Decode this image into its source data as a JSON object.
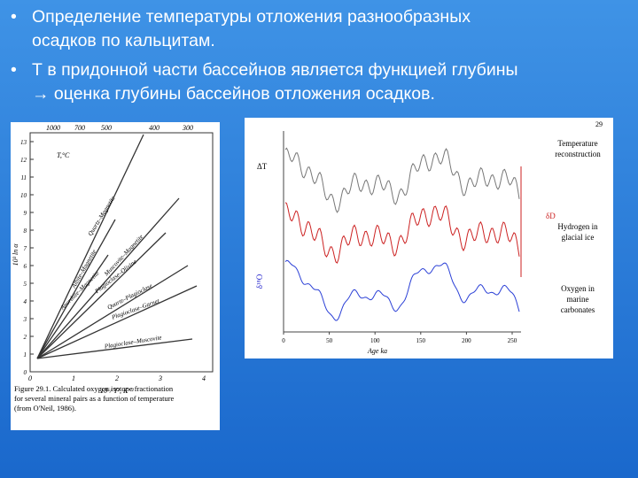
{
  "bullets": [
    {
      "lines": [
        "Определение температуры отложения разнообразных",
        "осадков по кальцитам."
      ]
    },
    {
      "lines": [
        "Т в придонной части бассейнов является функцией глубины",
        "→ оценка глубины бассейнов отложения осадков."
      ]
    }
  ],
  "figure_left": {
    "top_ticks": [
      "1000",
      "700",
      "500",
      "400",
      "300"
    ],
    "top_unit": "T,°C",
    "y_ticks": [
      "0",
      "1",
      "2",
      "3",
      "4",
      "5",
      "6",
      "7",
      "8",
      "9",
      "10",
      "11",
      "12",
      "13"
    ],
    "y_label": "10³ ln α",
    "x_ticks": [
      "0",
      "1",
      "2",
      "3",
      "4"
    ],
    "x_label": "10⁶/ T², K⁻²",
    "line_labels": [
      "Quartz–Magnetite",
      "Albite–Magnetite",
      "Muscovite–Magnetite",
      "Plagioclase–Olivine",
      "Anorthite–Magnetite",
      "Quartz–Plagioclase",
      "Plagioclase–Garnet",
      "Plagioclase–Muscovite"
    ],
    "caption": [
      "Figure 29.1.  Calculated oxygen isotope fractionation",
      "for several mineral pairs as a function of temperature",
      "(from O'Neil, 1986)."
    ]
  },
  "figure_right": {
    "page_number": "29",
    "labels": [
      [
        "Temperature",
        "reconstruction"
      ],
      [
        "Hydrogen in",
        "glacial ice"
      ],
      [
        "Oxygen in",
        "marine",
        "carbonates"
      ]
    ],
    "delta_t": "ΔT",
    "delta_d": "δD",
    "delta_o": "δ¹⁸O",
    "x_ticks": [
      "0",
      "50",
      "100",
      "150",
      "200",
      "250"
    ],
    "x_label": "Age ka"
  }
}
